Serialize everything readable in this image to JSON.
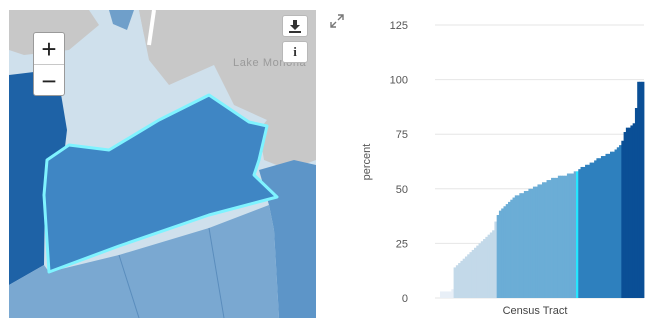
{
  "map": {
    "lake_label": "Lake Monona",
    "zoom_in_label": "+",
    "zoom_out_label": "−",
    "download_icon": "download-icon",
    "info_label": "i",
    "highlight_color": "#7ff3ff"
  },
  "chart_data": {
    "type": "bar",
    "xlabel": "Census Tract",
    "ylabel": "percent",
    "ylim": [
      0,
      125
    ],
    "yticks": [
      0,
      25,
      50,
      75,
      100,
      125
    ],
    "grid": true,
    "highlight_color": "#27e6ff",
    "class_colors": [
      "#e8eff7",
      "#c3d9e9",
      "#6badd6",
      "#2e80be",
      "#0a4f96"
    ],
    "class_breaks": [
      1,
      6,
      25,
      61,
      80
    ],
    "highlight_index": 60,
    "values": [
      3,
      3,
      3,
      3,
      3,
      4,
      14,
      15,
      16,
      17,
      18,
      19,
      20,
      21,
      22,
      23,
      24,
      25,
      26,
      27,
      28,
      29,
      30,
      31,
      35,
      38,
      40,
      41,
      42,
      43,
      44,
      45,
      46,
      47,
      47,
      48,
      48,
      49,
      49,
      50,
      50,
      51,
      51,
      52,
      52,
      53,
      53,
      54,
      54,
      55,
      55,
      55,
      56,
      56,
      56,
      56,
      57,
      57,
      57,
      58,
      58,
      59,
      60,
      60,
      61,
      61,
      62,
      62,
      63,
      64,
      64,
      65,
      65,
      66,
      66,
      67,
      67,
      68,
      69,
      70,
      72,
      76,
      78,
      78,
      79,
      80,
      87,
      99,
      99,
      99
    ]
  }
}
